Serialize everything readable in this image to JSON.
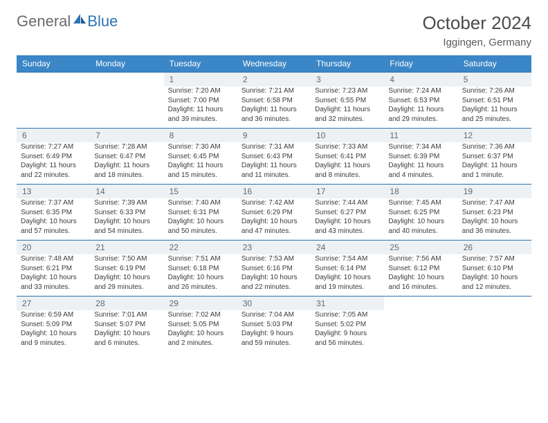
{
  "brand": {
    "part1": "General",
    "part2": "Blue"
  },
  "title": "October 2024",
  "location": "Iggingen, Germany",
  "colors": {
    "header_bg": "#3b86c6",
    "header_text": "#ffffff",
    "daynum_bg": "#eef1f4",
    "daynum_border": "#2e6fa8",
    "body_text": "#3a3a3a"
  },
  "dow": [
    "Sunday",
    "Monday",
    "Tuesday",
    "Wednesday",
    "Thursday",
    "Friday",
    "Saturday"
  ],
  "weeks": [
    [
      null,
      null,
      {
        "n": "1",
        "sr": "Sunrise: 7:20 AM",
        "ss": "Sunset: 7:00 PM",
        "d1": "Daylight: 11 hours",
        "d2": "and 39 minutes."
      },
      {
        "n": "2",
        "sr": "Sunrise: 7:21 AM",
        "ss": "Sunset: 6:58 PM",
        "d1": "Daylight: 11 hours",
        "d2": "and 36 minutes."
      },
      {
        "n": "3",
        "sr": "Sunrise: 7:23 AM",
        "ss": "Sunset: 6:55 PM",
        "d1": "Daylight: 11 hours",
        "d2": "and 32 minutes."
      },
      {
        "n": "4",
        "sr": "Sunrise: 7:24 AM",
        "ss": "Sunset: 6:53 PM",
        "d1": "Daylight: 11 hours",
        "d2": "and 29 minutes."
      },
      {
        "n": "5",
        "sr": "Sunrise: 7:26 AM",
        "ss": "Sunset: 6:51 PM",
        "d1": "Daylight: 11 hours",
        "d2": "and 25 minutes."
      }
    ],
    [
      {
        "n": "6",
        "sr": "Sunrise: 7:27 AM",
        "ss": "Sunset: 6:49 PM",
        "d1": "Daylight: 11 hours",
        "d2": "and 22 minutes."
      },
      {
        "n": "7",
        "sr": "Sunrise: 7:28 AM",
        "ss": "Sunset: 6:47 PM",
        "d1": "Daylight: 11 hours",
        "d2": "and 18 minutes."
      },
      {
        "n": "8",
        "sr": "Sunrise: 7:30 AM",
        "ss": "Sunset: 6:45 PM",
        "d1": "Daylight: 11 hours",
        "d2": "and 15 minutes."
      },
      {
        "n": "9",
        "sr": "Sunrise: 7:31 AM",
        "ss": "Sunset: 6:43 PM",
        "d1": "Daylight: 11 hours",
        "d2": "and 11 minutes."
      },
      {
        "n": "10",
        "sr": "Sunrise: 7:33 AM",
        "ss": "Sunset: 6:41 PM",
        "d1": "Daylight: 11 hours",
        "d2": "and 8 minutes."
      },
      {
        "n": "11",
        "sr": "Sunrise: 7:34 AM",
        "ss": "Sunset: 6:39 PM",
        "d1": "Daylight: 11 hours",
        "d2": "and 4 minutes."
      },
      {
        "n": "12",
        "sr": "Sunrise: 7:36 AM",
        "ss": "Sunset: 6:37 PM",
        "d1": "Daylight: 11 hours",
        "d2": "and 1 minute."
      }
    ],
    [
      {
        "n": "13",
        "sr": "Sunrise: 7:37 AM",
        "ss": "Sunset: 6:35 PM",
        "d1": "Daylight: 10 hours",
        "d2": "and 57 minutes."
      },
      {
        "n": "14",
        "sr": "Sunrise: 7:39 AM",
        "ss": "Sunset: 6:33 PM",
        "d1": "Daylight: 10 hours",
        "d2": "and 54 minutes."
      },
      {
        "n": "15",
        "sr": "Sunrise: 7:40 AM",
        "ss": "Sunset: 6:31 PM",
        "d1": "Daylight: 10 hours",
        "d2": "and 50 minutes."
      },
      {
        "n": "16",
        "sr": "Sunrise: 7:42 AM",
        "ss": "Sunset: 6:29 PM",
        "d1": "Daylight: 10 hours",
        "d2": "and 47 minutes."
      },
      {
        "n": "17",
        "sr": "Sunrise: 7:44 AM",
        "ss": "Sunset: 6:27 PM",
        "d1": "Daylight: 10 hours",
        "d2": "and 43 minutes."
      },
      {
        "n": "18",
        "sr": "Sunrise: 7:45 AM",
        "ss": "Sunset: 6:25 PM",
        "d1": "Daylight: 10 hours",
        "d2": "and 40 minutes."
      },
      {
        "n": "19",
        "sr": "Sunrise: 7:47 AM",
        "ss": "Sunset: 6:23 PM",
        "d1": "Daylight: 10 hours",
        "d2": "and 36 minutes."
      }
    ],
    [
      {
        "n": "20",
        "sr": "Sunrise: 7:48 AM",
        "ss": "Sunset: 6:21 PM",
        "d1": "Daylight: 10 hours",
        "d2": "and 33 minutes."
      },
      {
        "n": "21",
        "sr": "Sunrise: 7:50 AM",
        "ss": "Sunset: 6:19 PM",
        "d1": "Daylight: 10 hours",
        "d2": "and 29 minutes."
      },
      {
        "n": "22",
        "sr": "Sunrise: 7:51 AM",
        "ss": "Sunset: 6:18 PM",
        "d1": "Daylight: 10 hours",
        "d2": "and 26 minutes."
      },
      {
        "n": "23",
        "sr": "Sunrise: 7:53 AM",
        "ss": "Sunset: 6:16 PM",
        "d1": "Daylight: 10 hours",
        "d2": "and 22 minutes."
      },
      {
        "n": "24",
        "sr": "Sunrise: 7:54 AM",
        "ss": "Sunset: 6:14 PM",
        "d1": "Daylight: 10 hours",
        "d2": "and 19 minutes."
      },
      {
        "n": "25",
        "sr": "Sunrise: 7:56 AM",
        "ss": "Sunset: 6:12 PM",
        "d1": "Daylight: 10 hours",
        "d2": "and 16 minutes."
      },
      {
        "n": "26",
        "sr": "Sunrise: 7:57 AM",
        "ss": "Sunset: 6:10 PM",
        "d1": "Daylight: 10 hours",
        "d2": "and 12 minutes."
      }
    ],
    [
      {
        "n": "27",
        "sr": "Sunrise: 6:59 AM",
        "ss": "Sunset: 5:09 PM",
        "d1": "Daylight: 10 hours",
        "d2": "and 9 minutes."
      },
      {
        "n": "28",
        "sr": "Sunrise: 7:01 AM",
        "ss": "Sunset: 5:07 PM",
        "d1": "Daylight: 10 hours",
        "d2": "and 6 minutes."
      },
      {
        "n": "29",
        "sr": "Sunrise: 7:02 AM",
        "ss": "Sunset: 5:05 PM",
        "d1": "Daylight: 10 hours",
        "d2": "and 2 minutes."
      },
      {
        "n": "30",
        "sr": "Sunrise: 7:04 AM",
        "ss": "Sunset: 5:03 PM",
        "d1": "Daylight: 9 hours",
        "d2": "and 59 minutes."
      },
      {
        "n": "31",
        "sr": "Sunrise: 7:05 AM",
        "ss": "Sunset: 5:02 PM",
        "d1": "Daylight: 9 hours",
        "d2": "and 56 minutes."
      },
      null,
      null
    ]
  ]
}
